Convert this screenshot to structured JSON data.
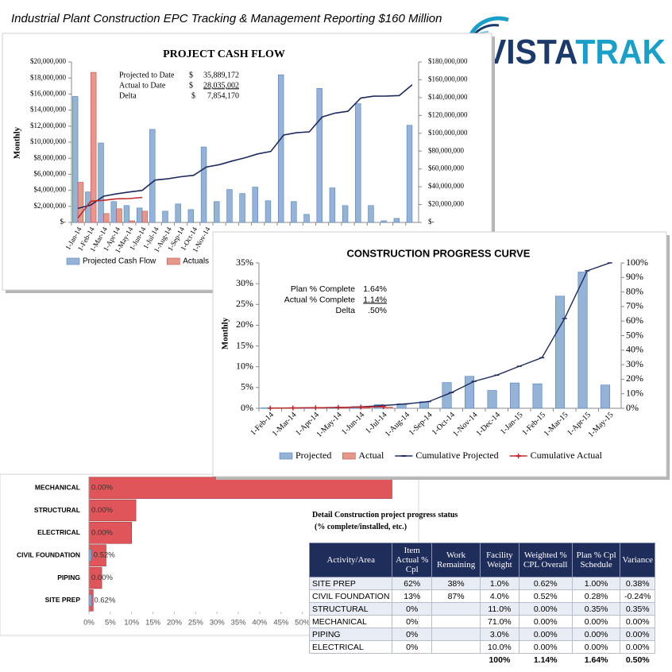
{
  "header": {
    "title": "Industrial Plant Construction EPC Tracking & Management Reporting $160 Million",
    "logo": [
      "VISTA",
      "TRAK"
    ]
  },
  "chart_data": [
    {
      "type": "bar",
      "title": "PROJECT CASH FLOW",
      "y_label": "Monthly",
      "categories": [
        "1-Jan-14",
        "1-Feb-14",
        "1-Mar-14",
        "1-Apr-14",
        "1-May-14",
        "1-Jun-14",
        "1-Jul-14",
        "1-Aug-14",
        "1-Sep-14",
        "1-Oct-14",
        "1-Nov-14",
        null,
        null,
        null,
        null,
        null,
        null,
        null,
        null,
        null,
        null,
        null,
        null,
        null,
        null,
        null,
        null
      ],
      "series": [
        {
          "name": "Projected Cash Flow",
          "color": "#95b3d7",
          "values": [
            15700000,
            3800000,
            9900000,
            2600000,
            2100000,
            1800000,
            11600000,
            1400000,
            2300000,
            1600000,
            9400000,
            2600000,
            4100000,
            3600000,
            4400000,
            2700000,
            18400000,
            2600000,
            1000000,
            16700000,
            4300000,
            2100000,
            14800000,
            2100000,
            200000,
            500000,
            12100000
          ]
        },
        {
          "name": "Actuals",
          "color": "#e6988a",
          "values": [
            5000000,
            18700000,
            1100000,
            1700000,
            200000,
            1400000,
            null,
            null,
            null,
            null,
            null,
            null,
            null,
            null,
            null,
            null,
            null,
            null,
            null,
            null,
            null,
            null,
            null,
            null,
            null,
            null,
            null
          ]
        },
        {
          "type": "line",
          "axis": "y2",
          "color": "#1f2a5c",
          "values": [
            15700000,
            19500000,
            29400000,
            32000000,
            34100000,
            35900000,
            47500000,
            48900000,
            51200000,
            52800000,
            62200000,
            64800000,
            68900000,
            72500000,
            76900000,
            79600000,
            98000000,
            100600000,
            101600000,
            118300000,
            122600000,
            124700000,
            139500000,
            141600000,
            141800000,
            142300000,
            154400000
          ]
        },
        {
          "type": "line",
          "axis": "y2",
          "color": "#c0282d",
          "values": [
            5000000,
            23700000,
            24800000,
            26500000,
            26700000,
            28100000,
            null,
            null,
            null,
            null,
            null,
            null,
            null,
            null,
            null,
            null,
            null,
            null,
            null,
            null,
            null,
            null,
            null,
            null,
            null,
            null,
            null
          ]
        }
      ],
      "ylim": [
        0,
        20000000
      ],
      "yticks": [
        {
          "value": 0,
          "label": "$-"
        },
        {
          "value": 2000000,
          "label": "$2,000,000"
        },
        {
          "value": 4000000,
          "label": "$4,000,000"
        },
        {
          "value": 6000000,
          "label": "$6,000,000"
        },
        {
          "value": 8000000,
          "label": "$8,000,000"
        },
        {
          "value": 10000000,
          "label": "$10,000,000"
        },
        {
          "value": 12000000,
          "label": "$12,000,000"
        },
        {
          "value": 14000000,
          "label": "$14,000,000"
        },
        {
          "value": 16000000,
          "label": "$16,000,000"
        },
        {
          "value": 18000000,
          "label": "$18,000,000"
        },
        {
          "value": 20000000,
          "label": "$20,000,000"
        }
      ],
      "y2lim": [
        0,
        180000000
      ],
      "y2ticks": [
        {
          "value": 0,
          "label": "$-"
        },
        {
          "value": 20000000,
          "label": "$20,000,000"
        },
        {
          "value": 40000000,
          "label": "$40,000,000"
        },
        {
          "value": 60000000,
          "label": "$60,000,000"
        },
        {
          "value": 80000000,
          "label": "$80,000,000"
        },
        {
          "value": 100000000,
          "label": "$100,000,000"
        },
        {
          "value": 120000000,
          "label": "$120,000,000"
        },
        {
          "value": 140000000,
          "label": "$140,000,000"
        },
        {
          "value": 160000000,
          "label": "$160,000,000"
        },
        {
          "value": 180000000,
          "label": "$180,000,000"
        }
      ],
      "annotations": [
        {
          "label": "Projected to Date",
          "unit": "$",
          "amount": "35,889,172"
        },
        {
          "label": "Actual to Date",
          "unit": "$",
          "amount": "28,035,002"
        },
        {
          "label": "Delta",
          "unit": "$",
          "amount": "7,854,170"
        }
      ],
      "legend": "bottom"
    },
    {
      "type": "bar",
      "title": "CONSTRUCTION PROGRESS CURVE",
      "y_label": "Monthly",
      "categories": [
        "1-Feb-14",
        "1-Mar-14",
        "1-Apr-14",
        "1-May-14",
        "1-Jun-14",
        "1-Jul-14",
        "1-Aug-14",
        "1-Sep-14",
        "1-Oct-14",
        "1-Nov-14",
        "1-Dec-14",
        "1-Jan-15",
        "1-Feb-15",
        "1-Mar-15",
        "1-Apr-15",
        "1-May-15"
      ],
      "series": [
        {
          "name": "Projected",
          "color": "#95b3d7",
          "values": [
            0.1,
            0.1,
            0.2,
            0.2,
            0.4,
            0.9,
            1.1,
            1.6,
            6.2,
            7.7,
            4.3,
            6.1,
            5.9,
            27,
            32.8,
            5.6
          ]
        },
        {
          "name": "Actual",
          "color": "#e6988a",
          "values": [
            0.1,
            0.1,
            0.2,
            0.2,
            0.2,
            0.3,
            null,
            null,
            null,
            null,
            null,
            null,
            null,
            null,
            null,
            null
          ]
        },
        {
          "name": "Cumulative Projected",
          "type": "line",
          "axis": "y2",
          "color": "#1f2a5c",
          "marker": "dash",
          "values": [
            0.1,
            0.2,
            0.4,
            0.6,
            1.0,
            1.9,
            3.0,
            4.6,
            10.8,
            18.5,
            22.8,
            28.9,
            34.8,
            61.8,
            94.6,
            100
          ]
        },
        {
          "name": "Cumulative Actual",
          "type": "line",
          "axis": "y2",
          "color": "#c0282d",
          "marker": "plus",
          "values": [
            0.1,
            0.2,
            0.4,
            0.6,
            0.8,
            1.1,
            null,
            null,
            null,
            null,
            null,
            null,
            null,
            null,
            null,
            null
          ]
        }
      ],
      "ylim": [
        0,
        35
      ],
      "yticks": [
        {
          "value": 0,
          "label": "0%"
        },
        {
          "value": 5,
          "label": "5%"
        },
        {
          "value": 10,
          "label": "10%"
        },
        {
          "value": 15,
          "label": "15%"
        },
        {
          "value": 20,
          "label": "20%"
        },
        {
          "value": 25,
          "label": "25%"
        },
        {
          "value": 30,
          "label": "30%"
        },
        {
          "value": 35,
          "label": "35%"
        }
      ],
      "y2lim": [
        0,
        100
      ],
      "y2ticks": [
        {
          "value": 0,
          "label": "0%"
        },
        {
          "value": 10,
          "label": "10%"
        },
        {
          "value": 20,
          "label": "20%"
        },
        {
          "value": 30,
          "label": "30%"
        },
        {
          "value": 40,
          "label": "40%"
        },
        {
          "value": 50,
          "label": "50%"
        },
        {
          "value": 60,
          "label": "60%"
        },
        {
          "value": 70,
          "label": "70%"
        },
        {
          "value": 80,
          "label": "80%"
        },
        {
          "value": 90,
          "label": "90%"
        },
        {
          "value": 100,
          "label": "100%"
        }
      ],
      "annotations": [
        {
          "label": "Plan % Complete",
          "amount": "1.64%"
        },
        {
          "label": "Actual % Complete",
          "amount": "1.14%"
        },
        {
          "label": "Delta",
          "amount": ".50%"
        }
      ],
      "legend": "bottom"
    },
    {
      "type": "hbar",
      "categories": [
        "MECHANICAL",
        "STRUCTURAL",
        "ELECTRICAL",
        "CIVIL FOUNDATION",
        "PIPING",
        "SITE PREP"
      ],
      "series": [
        {
          "color": "#e05559",
          "values": [
            71,
            11,
            10,
            4,
            3,
            1
          ]
        },
        {
          "color": "#7ea9d8",
          "values": [
            0,
            0,
            0,
            0.52,
            0,
            0.62
          ],
          "value_labels": [
            "0.00%",
            "0.00%",
            "0.00%",
            "0.52%",
            "0.00%",
            "0.62%"
          ]
        }
      ],
      "xlim": [
        0,
        75
      ],
      "xticks": [
        {
          "value": 0,
          "label": "0%"
        },
        {
          "value": 5,
          "label": "5%"
        },
        {
          "value": 10,
          "label": "10%"
        },
        {
          "value": 15,
          "label": "15%"
        },
        {
          "value": 20,
          "label": "20%"
        },
        {
          "value": 25,
          "label": "25%"
        },
        {
          "value": 30,
          "label": "30%"
        },
        {
          "value": 35,
          "label": "35%"
        },
        {
          "value": 40,
          "label": "40%"
        },
        {
          "value": 45,
          "label": "45%"
        },
        {
          "value": 50,
          "label": "50%"
        }
      ]
    }
  ],
  "table": {
    "title": "Detail Construction project progress status",
    "subtitle": "(% complete/installed, etc.)",
    "header": [
      "Activity/Area",
      "Item Actual % Cpl",
      "Work Remaining",
      "Facility Weight",
      "Weighted % CPL Overall",
      "Plan % Cpl Schedule",
      "Variance"
    ],
    "rows": [
      [
        "SITE PREP",
        "62%",
        "38%",
        "1.0%",
        "0.62%",
        "1.00%",
        "0.38%"
      ],
      [
        "CIVIL FOUNDATION",
        "13%",
        "87%",
        "4.0%",
        "0.52%",
        "0.28%",
        "-0.24%"
      ],
      [
        "STRUCTURAL",
        "0%",
        null,
        "11.0%",
        "0.00%",
        "0.35%",
        "0.35%"
      ],
      [
        "MECHANICAL",
        "0%",
        null,
        "71.0%",
        "0.00%",
        "0.00%",
        "0.00%"
      ],
      [
        "PIPING",
        "0%",
        null,
        "3.0%",
        "0.00%",
        "0.00%",
        "0.00%"
      ],
      [
        "ELECTRICAL",
        "0%",
        null,
        "10.0%",
        "0.00%",
        "0.00%",
        "0.00%"
      ]
    ],
    "totals": [
      null,
      null,
      null,
      "100%",
      "1.14%",
      "1.64%",
      "0.50%"
    ]
  }
}
